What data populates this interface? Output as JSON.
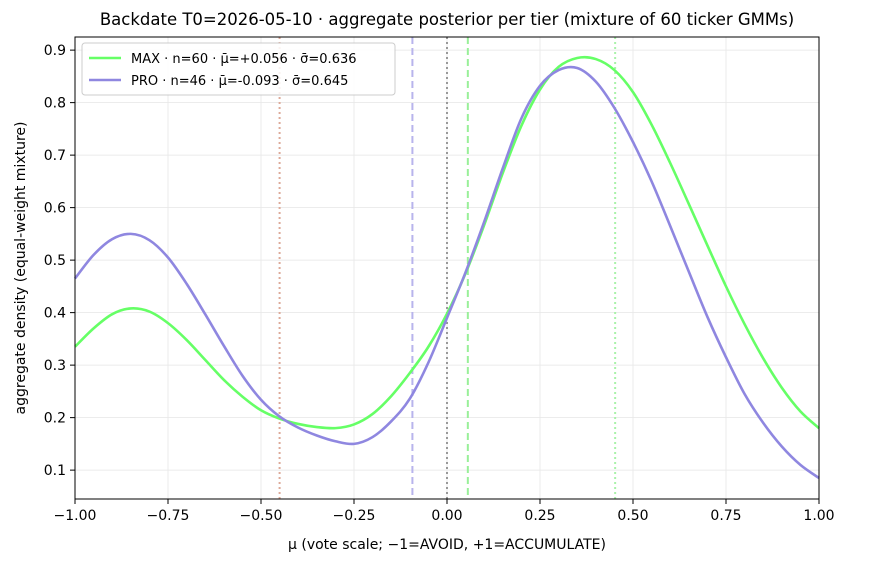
{
  "chart_data": {
    "type": "line",
    "title": "Backdate T0=2026-05-10 · aggregate posterior per tier (mixture of 60 ticker GMMs)",
    "xlabel": "μ (vote scale; −1=AVOID, +1=ACCUMULATE)",
    "ylabel": "aggregate density (equal-weight mixture)",
    "xlim": [
      -1.0,
      1.0
    ],
    "ylim": [
      0.045,
      0.925
    ],
    "xticks": [
      -1.0,
      -0.75,
      -0.5,
      -0.25,
      0.0,
      0.25,
      0.5,
      0.75,
      1.0
    ],
    "xtick_labels": [
      "−1.00",
      "−0.75",
      "−0.50",
      "−0.25",
      "0.00",
      "0.25",
      "0.50",
      "0.75",
      "1.00"
    ],
    "yticks": [
      0.1,
      0.2,
      0.3,
      0.4,
      0.5,
      0.6,
      0.7,
      0.8,
      0.9
    ],
    "ytick_labels": [
      "0.1",
      "0.2",
      "0.3",
      "0.4",
      "0.5",
      "0.6",
      "0.7",
      "0.8",
      "0.9"
    ],
    "grid": true,
    "legend_position": "top-left",
    "x": [
      -1.0,
      -0.95,
      -0.9,
      -0.85,
      -0.8,
      -0.75,
      -0.7,
      -0.65,
      -0.6,
      -0.55,
      -0.5,
      -0.45,
      -0.4,
      -0.35,
      -0.3,
      -0.25,
      -0.2,
      -0.15,
      -0.1,
      -0.05,
      0.0,
      0.05,
      0.1,
      0.15,
      0.2,
      0.25,
      0.3,
      0.35,
      0.4,
      0.45,
      0.5,
      0.55,
      0.6,
      0.65,
      0.7,
      0.75,
      0.8,
      0.85,
      0.9,
      0.95,
      1.0
    ],
    "series": [
      {
        "name": "MAX · n=60 · μ̄=+0.056 · σ̄=0.636",
        "color": "#66ff66",
        "values": [
          0.335,
          0.37,
          0.397,
          0.408,
          0.402,
          0.38,
          0.348,
          0.31,
          0.272,
          0.24,
          0.214,
          0.198,
          0.188,
          0.182,
          0.18,
          0.187,
          0.207,
          0.241,
          0.285,
          0.335,
          0.398,
          0.475,
          0.567,
          0.666,
          0.756,
          0.825,
          0.868,
          0.885,
          0.883,
          0.862,
          0.82,
          0.758,
          0.685,
          0.607,
          0.528,
          0.45,
          0.378,
          0.313,
          0.257,
          0.212,
          0.18
        ]
      },
      {
        "name": "PRO · n=46 · μ̄=-0.093 · σ̄=0.645",
        "color": "#8f87e0",
        "values": [
          0.465,
          0.51,
          0.54,
          0.55,
          0.538,
          0.505,
          0.455,
          0.397,
          0.337,
          0.28,
          0.234,
          0.202,
          0.181,
          0.166,
          0.155,
          0.15,
          0.163,
          0.193,
          0.236,
          0.305,
          0.39,
          0.477,
          0.573,
          0.675,
          0.77,
          0.832,
          0.862,
          0.866,
          0.84,
          0.79,
          0.725,
          0.65,
          0.565,
          0.478,
          0.392,
          0.315,
          0.245,
          0.19,
          0.145,
          0.11,
          0.085
        ]
      }
    ],
    "vlines": [
      {
        "x": -0.45,
        "color": "#ddaa99",
        "style": "dotted"
      },
      {
        "x": -0.093,
        "color": "#b8b4ec",
        "style": "dashed"
      },
      {
        "x": 0.0,
        "color": "#999999",
        "style": "dotted"
      },
      {
        "x": 0.056,
        "color": "#99f099",
        "style": "dashed"
      },
      {
        "x": 0.452,
        "color": "#aaf2aa",
        "style": "dotted"
      }
    ]
  }
}
